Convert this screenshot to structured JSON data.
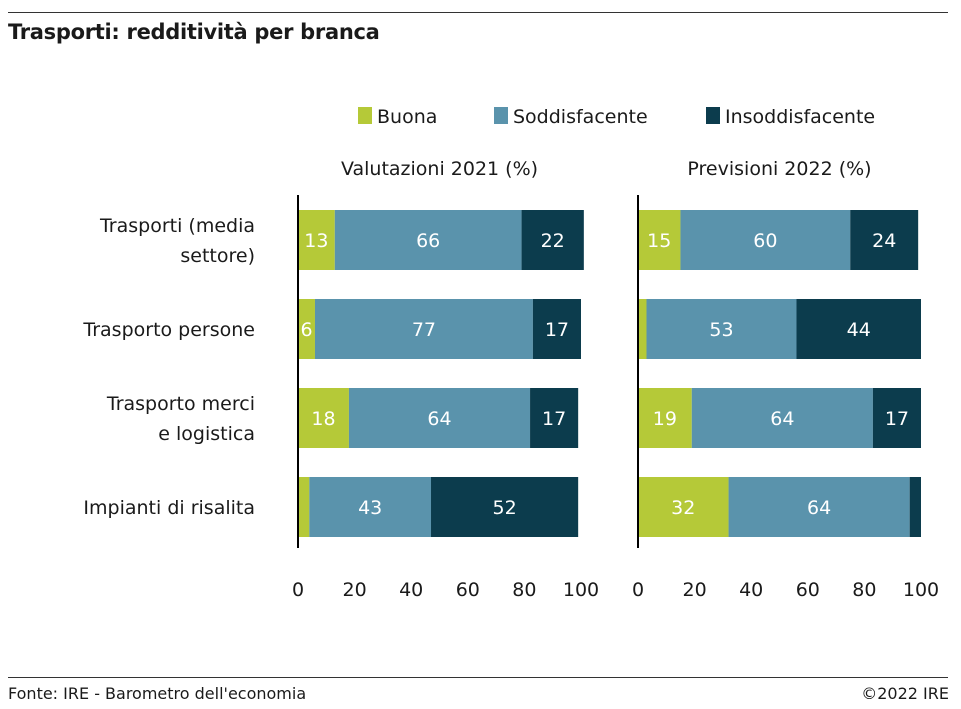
{
  "header": {
    "title": "Trasporti: redditività per branca"
  },
  "footer": {
    "source": "Fonte: IRE - Barometro dell'economia",
    "copyright": "©2022 IRE"
  },
  "colors": {
    "Buona": "#b5c938",
    "Soddisfacente": "#5a93ac",
    "Insoddisfacente": "#0c3c4d",
    "label_light": "#ffffff",
    "axis": "#000000",
    "text": "#1a1a1a"
  },
  "chart_data": [
    {
      "type": "bar",
      "orientation": "horizontal",
      "stacked": true,
      "title": "Valutazioni 2021 (%)",
      "categories": [
        [
          "Trasporti (media",
          "settore)"
        ],
        [
          "Trasporto persone"
        ],
        [
          "Trasporto merci",
          "e logistica"
        ],
        [
          "Impianti di risalita"
        ]
      ],
      "series": [
        {
          "name": "Buona",
          "values": [
            13,
            6,
            18,
            4
          ],
          "labels": [
            "13",
            "6",
            "18",
            ""
          ]
        },
        {
          "name": "Soddisfacente",
          "values": [
            66,
            77,
            64,
            43
          ],
          "labels": [
            "66",
            "77",
            "64",
            "43"
          ]
        },
        {
          "name": "Insoddisfacente",
          "values": [
            22,
            17,
            17,
            52
          ],
          "labels": [
            "22",
            "17",
            "17",
            "52"
          ]
        }
      ],
      "xlim": [
        0,
        100
      ],
      "xticks": [
        "0",
        "20",
        "40",
        "60",
        "80",
        "100"
      ],
      "legend_position": "top",
      "grid": false
    },
    {
      "type": "bar",
      "orientation": "horizontal",
      "stacked": true,
      "title": "Previsioni 2022 (%)",
      "categories": [
        [
          "Trasporti (media",
          "settore)"
        ],
        [
          "Trasporto persone"
        ],
        [
          "Trasporto merci",
          "e logistica"
        ],
        [
          "Impianti di risalita"
        ]
      ],
      "series": [
        {
          "name": "Buona",
          "values": [
            15,
            3,
            19,
            32
          ],
          "labels": [
            "15",
            "",
            "19",
            "32"
          ]
        },
        {
          "name": "Soddisfacente",
          "values": [
            60,
            53,
            64,
            64
          ],
          "labels": [
            "60",
            "53",
            "64",
            "64"
          ]
        },
        {
          "name": "Insoddisfacente",
          "values": [
            24,
            44,
            17,
            4
          ],
          "labels": [
            "24",
            "44",
            "17",
            ""
          ]
        }
      ],
      "xlim": [
        0,
        100
      ],
      "xticks": [
        "0",
        "20",
        "40",
        "60",
        "80",
        "100"
      ],
      "legend_position": "top",
      "grid": false
    }
  ]
}
